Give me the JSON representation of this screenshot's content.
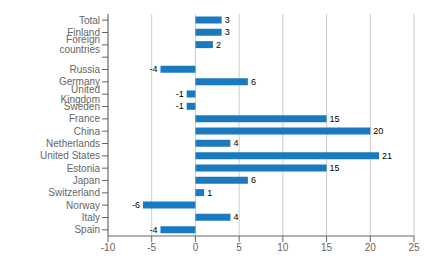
{
  "chart_data": {
    "type": "bar",
    "orientation": "horizontal",
    "categories": [
      "Spain",
      "Italy",
      "Norway",
      "Switzerland",
      "Japan",
      "Estonia",
      "United States",
      "Netherlands",
      "China",
      "France",
      "Sweden",
      "United Kingdom",
      "Germany",
      "Russia",
      null,
      "Foreign countries",
      "Finland",
      "Total"
    ],
    "values": [
      -4,
      4,
      -6,
      1,
      6,
      15,
      21,
      4,
      20,
      15,
      -1,
      -1,
      6,
      -4,
      null,
      2,
      3,
      3
    ],
    "color": "#1a7abf",
    "xlim": [
      -10,
      25
    ],
    "xticks": [
      -10,
      -5,
      0,
      5,
      10,
      15,
      20,
      25
    ],
    "grid": true,
    "data_labels": true
  }
}
